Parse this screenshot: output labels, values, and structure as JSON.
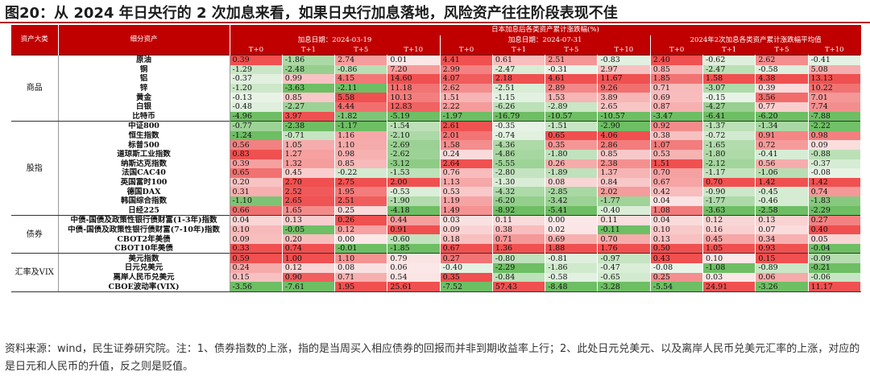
{
  "title": "图20：从 2024 年日央行的 2 次加息来看，如果日央行加息落地，风险资产往往阶段表现不佳",
  "header": {
    "banner": "日本加息后各类资产累计涨跌幅(%)",
    "col_class": "资产大类",
    "col_asset": "细分资产",
    "group1": "加息日期：2024-03-19",
    "group2": "加息日期：2024-07-31",
    "group3": "2024年2次加息各类资产累计涨跌幅平均值",
    "periods": [
      "T+0",
      "T+1",
      "T+5",
      "T+10",
      "T+0",
      "T+1",
      "T+5",
      "T+10",
      "T+0",
      "T+1",
      "T+5",
      "T+10"
    ]
  },
  "groups": [
    {
      "name": "商品",
      "rows": [
        {
          "asset": "原油",
          "values": [
            "0.39",
            "-1.86",
            "2.74",
            "0.01",
            "4.41",
            "0.61",
            "2.51",
            "-0.83",
            "2.40",
            "-0.62",
            "2.62",
            "-0.41"
          ]
        },
        {
          "asset": "铜",
          "values": [
            "-1.29",
            "-2.48",
            "-0.86",
            "7.20",
            "2.99",
            "-2.47",
            "-0.31",
            "2.97",
            "0.85",
            "-2.47",
            "-0.58",
            "5.08"
          ]
        },
        {
          "asset": "铝",
          "values": [
            "-0.37",
            "0.99",
            "4.15",
            "14.60",
            "4.07",
            "2.18",
            "4.61",
            "11.67",
            "1.85",
            "1.58",
            "4.38",
            "13.13"
          ]
        },
        {
          "asset": "锌",
          "values": [
            "-1.20",
            "-3.63",
            "-2.11",
            "11.18",
            "2.62",
            "-2.51",
            "2.89",
            "9.26",
            "0.71",
            "-3.07",
            "0.39",
            "10.22"
          ]
        },
        {
          "asset": "黄金",
          "values": [
            "-0.13",
            "0.85",
            "5.58",
            "10.13",
            "1.51",
            "-1.15",
            "1.53",
            "3.89",
            "0.69",
            "-0.15",
            "3.56",
            "7.01"
          ]
        },
        {
          "asset": "白银",
          "values": [
            "-0.48",
            "-2.27",
            "4.44",
            "12.83",
            "2.22",
            "-6.26",
            "-2.89",
            "2.65",
            "0.87",
            "-4.27",
            "0.77",
            "7.74"
          ]
        },
        {
          "asset": "比特币",
          "values": [
            "-4.96",
            "3.97",
            "-1.82",
            "-5.19",
            "-1.97",
            "-16.79",
            "-10.57",
            "-10.57",
            "-3.47",
            "-6.41",
            "-6.20",
            "-7.88"
          ]
        }
      ]
    },
    {
      "name": "股指",
      "rows": [
        {
          "asset": "中证800",
          "values": [
            "-0.77",
            "-2.38",
            "-1.17",
            "-1.54",
            "2.61",
            "-0.35",
            "-1.51",
            "-2.90",
            "0.92",
            "-1.37",
            "-1.34",
            "-2.22"
          ]
        },
        {
          "asset": "恒生指数",
          "values": [
            "-1.24",
            "-0.71",
            "1.16",
            "-2.10",
            "2.01",
            "-0.74",
            "0.65",
            "4.06",
            "0.38",
            "-0.72",
            "0.91",
            "0.98"
          ]
        },
        {
          "asset": "标普500",
          "values": [
            "0.56",
            "1.05",
            "1.10",
            "-2.69",
            "1.58",
            "-4.36",
            "0.35",
            "2.86",
            "1.07",
            "-1.65",
            "0.72",
            "0.09"
          ]
        },
        {
          "asset": "道琼斯工业指数",
          "values": [
            "0.83",
            "1.27",
            "0.98",
            "-2.62",
            "0.24",
            "-4.86",
            "-1.80",
            "0.85",
            "0.53",
            "-1.80",
            "-0.41",
            "-0.88"
          ]
        },
        {
          "asset": "纳斯达克指数",
          "values": [
            "0.39",
            "1.32",
            "0.85",
            "-3.12",
            "2.64",
            "-5.55",
            "0.26",
            "2.38",
            "1.51",
            "-2.12",
            "0.56",
            "-0.37"
          ]
        },
        {
          "asset": "法国CAC40",
          "values": [
            "0.65",
            "0.45",
            "-0.22",
            "-1.53",
            "0.76",
            "-2.80",
            "-1.89",
            "1.37",
            "0.70",
            "-1.17",
            "-1.06",
            "-0.08"
          ]
        },
        {
          "asset": "英国富时100",
          "values": [
            "0.20",
            "2.70",
            "2.75",
            "2.00",
            "1.13",
            "-1.30",
            "0.08",
            "0.84",
            "0.67",
            "0.70",
            "1.42",
            "1.42"
          ]
        },
        {
          "asset": "德国DAX",
          "values": [
            "0.31",
            "2.52",
            "1.95",
            "-0.53",
            "0.53",
            "-4.32",
            "-2.85",
            "2.02",
            "0.42",
            "-0.90",
            "-0.45",
            "0.74"
          ]
        },
        {
          "asset": "韩国综合指数",
          "values": [
            "-1.10",
            "2.65",
            "2.51",
            "-1.90",
            "1.19",
            "-6.20",
            "-3.42",
            "-1.77",
            "0.04",
            "-1.77",
            "-0.46",
            "-1.83"
          ]
        },
        {
          "asset": "日经225",
          "values": [
            "0.66",
            "1.65",
            "0.25",
            "-4.18",
            "1.49",
            "-8.92",
            "-5.41",
            "-0.40",
            "1.08",
            "-3.63",
            "-2.58",
            "-2.29"
          ]
        }
      ]
    },
    {
      "name": "债券",
      "rows": [
        {
          "asset": "中债-国债及政策性银行债财富(1-3年)指数",
          "values": [
            "0.04",
            "0.13",
            "0.26",
            "0.44",
            "0.03",
            "0.11",
            "0.00",
            "0.11",
            "0.04",
            "0.12",
            "0.13",
            "0.27"
          ]
        },
        {
          "asset": "中债-国债及政策性银行债财富(7-10年)指数",
          "values": [
            "0.10",
            "-0.05",
            "0.12",
            "0.91",
            "0.09",
            "0.38",
            "0.02",
            "-0.11",
            "0.10",
            "0.16",
            "0.07",
            "0.40"
          ]
        },
        {
          "asset": "CBOT2年美债",
          "values": [
            "0.09",
            "0.20",
            "0.00",
            "-0.60",
            "0.18",
            "0.71",
            "0.69",
            "0.70",
            "0.13",
            "0.45",
            "0.34",
            "0.05"
          ]
        },
        {
          "asset": "CBOT10年美债",
          "values": [
            "0.33",
            "0.74",
            "-0.01",
            "-1.85",
            "0.67",
            "1.36",
            "1.88",
            "1.76",
            "0.50",
            "1.05",
            "0.93",
            "-0.04"
          ]
        }
      ]
    },
    {
      "name": "汇率及VIX",
      "rows": [
        {
          "asset": "美元指数",
          "values": [
            "0.59",
            "1.00",
            "1.10",
            "0.79",
            "0.27",
            "-0.80",
            "-0.81",
            "-0.97",
            "0.43",
            "0.10",
            "0.15",
            "-0.09"
          ]
        },
        {
          "asset": "日元兑美元",
          "values": [
            "0.24",
            "0.12",
            "0.08",
            "0.06",
            "-0.40",
            "-2.29",
            "-1.86",
            "-0.47",
            "-0.08",
            "-1.08",
            "-0.89",
            "-0.21"
          ]
        },
        {
          "asset": "离岸人民币兑美元",
          "values": [
            "0.15",
            "0.90",
            "0.71",
            "0.54",
            "0.35",
            "-0.84",
            "-0.58",
            "-0.65",
            "0.25",
            "0.03",
            "0.06",
            "-0.06"
          ]
        },
        {
          "asset": "CBOE波动率(VIX)",
          "values": [
            "-3.56",
            "-7.61",
            "1.95",
            "25.61",
            "-7.52",
            "57.43",
            "-8.48",
            "-3.28",
            "-5.54",
            "24.91",
            "-3.26",
            "11.17"
          ]
        }
      ]
    }
  ],
  "source_note": "资料来源：wind，民生证券研究院。注：1、债券指数的上涨，指的是当周买入相应债券的回报而并非到期收益率上行；2、此处日元兑美元、以及离岸人民币兑美元汇率的上涨，对应的是日元和人民币的升值，反之则是贬值。"
}
